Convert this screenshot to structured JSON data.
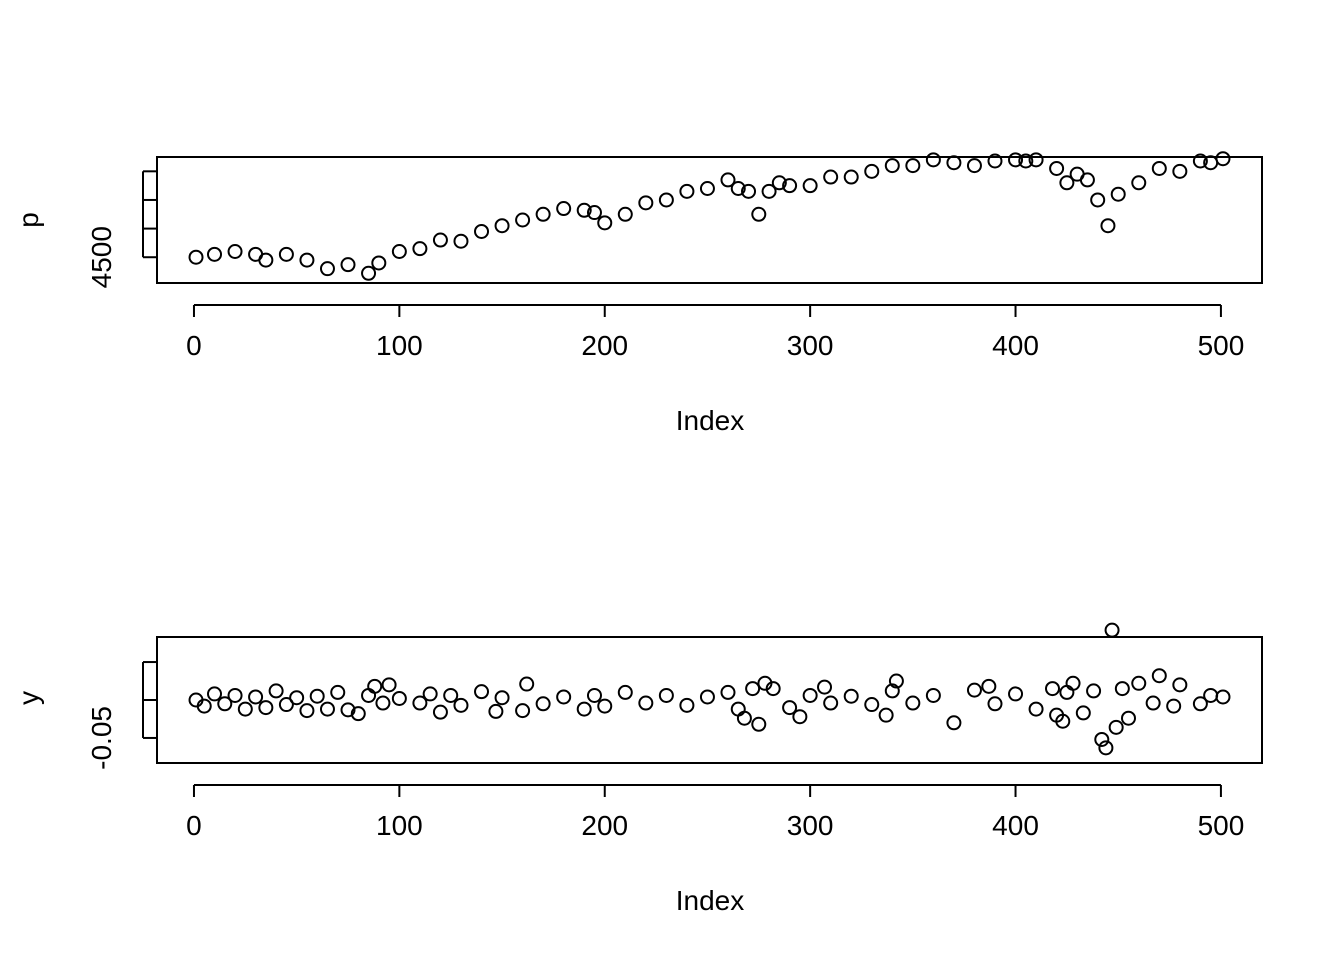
{
  "chart_data": [
    {
      "type": "scatter",
      "title": "",
      "xlabel": "Index",
      "ylabel": "p",
      "xlim": [
        -18,
        520
      ],
      "ylim": [
        4455,
        4675
      ],
      "x_ticks": [
        0,
        100,
        200,
        300,
        400,
        500
      ],
      "x_tick_labels": [
        "0",
        "100",
        "200",
        "300",
        "400",
        "500"
      ],
      "y_ticks": [
        4500,
        4550,
        4600,
        4650
      ],
      "y_tick_labels": [
        "4500",
        "",
        "",
        ""
      ],
      "series": [
        {
          "x": [
            1,
            10,
            20,
            30,
            35,
            45,
            55,
            65,
            75,
            85,
            90,
            100,
            110,
            120,
            130,
            140,
            150,
            160,
            170,
            180,
            190,
            195,
            200,
            210,
            220,
            230,
            240,
            250,
            260,
            265,
            270,
            275,
            280,
            285,
            290,
            300,
            310,
            320,
            330,
            340,
            350,
            360,
            370,
            380,
            390,
            400,
            405,
            410,
            420,
            425,
            430,
            435,
            440,
            445,
            450,
            460,
            470,
            480,
            490,
            495,
            501
          ],
          "y": [
            4500,
            4505,
            4510,
            4505,
            4495,
            4505,
            4495,
            4480,
            4487,
            4472,
            4490,
            4510,
            4515,
            4530,
            4528,
            4545,
            4555,
            4565,
            4575,
            4585,
            4582,
            4578,
            4560,
            4575,
            4595,
            4600,
            4615,
            4620,
            4635,
            4620,
            4615,
            4575,
            4615,
            4630,
            4625,
            4625,
            4640,
            4640,
            4650,
            4660,
            4660,
            4670,
            4665,
            4660,
            4668,
            4670,
            4668,
            4670,
            4655,
            4630,
            4645,
            4635,
            4600,
            4555,
            4610,
            4630,
            4655,
            4650,
            4668,
            4665,
            4672
          ]
        }
      ]
    },
    {
      "type": "scatter",
      "title": "",
      "xlabel": "Index",
      "ylabel": "y",
      "xlim": [
        -18,
        520
      ],
      "ylim": [
        -0.083,
        0.083
      ],
      "x_ticks": [
        0,
        100,
        200,
        300,
        400,
        500
      ],
      "x_tick_labels": [
        "0",
        "100",
        "200",
        "300",
        "400",
        "500"
      ],
      "y_ticks": [
        -0.05,
        0.0,
        0.05
      ],
      "y_tick_labels": [
        "-0.05",
        "",
        ""
      ],
      "series": [
        {
          "x": [
            1,
            5,
            10,
            15,
            20,
            25,
            30,
            35,
            40,
            45,
            50,
            55,
            60,
            65,
            70,
            75,
            80,
            85,
            88,
            92,
            95,
            100,
            110,
            115,
            120,
            125,
            130,
            140,
            147,
            150,
            160,
            162,
            170,
            180,
            190,
            195,
            200,
            210,
            220,
            230,
            240,
            250,
            260,
            265,
            268,
            272,
            275,
            278,
            282,
            290,
            295,
            300,
            307,
            310,
            320,
            330,
            337,
            340,
            342,
            350,
            360,
            370,
            380,
            387,
            390,
            400,
            410,
            418,
            420,
            423,
            425,
            428,
            433,
            438,
            442,
            444,
            447,
            449,
            452,
            455,
            460,
            467,
            470,
            477,
            480,
            490,
            495,
            501
          ],
          "y": [
            0.0,
            -0.008,
            0.008,
            -0.005,
            0.006,
            -0.012,
            0.004,
            -0.01,
            0.012,
            -0.006,
            0.003,
            -0.014,
            0.005,
            -0.012,
            0.01,
            -0.013,
            -0.018,
            0.006,
            0.018,
            -0.004,
            0.02,
            0.002,
            -0.004,
            0.008,
            -0.016,
            0.006,
            -0.007,
            0.011,
            -0.015,
            0.003,
            -0.014,
            0.021,
            -0.005,
            0.004,
            -0.012,
            0.006,
            -0.008,
            0.01,
            -0.004,
            0.006,
            -0.007,
            0.004,
            0.01,
            -0.012,
            -0.024,
            0.015,
            -0.032,
            0.022,
            0.015,
            -0.01,
            -0.022,
            0.006,
            0.017,
            -0.004,
            0.005,
            -0.006,
            -0.02,
            0.012,
            0.025,
            -0.004,
            0.006,
            -0.03,
            0.013,
            0.018,
            -0.005,
            0.008,
            -0.012,
            0.015,
            -0.02,
            -0.028,
            0.01,
            0.022,
            -0.017,
            0.012,
            -0.052,
            -0.063,
            0.092,
            -0.036,
            0.015,
            -0.024,
            0.022,
            -0.004,
            0.032,
            -0.008,
            0.02,
            -0.005,
            0.006,
            0.004
          ]
        }
      ]
    }
  ]
}
